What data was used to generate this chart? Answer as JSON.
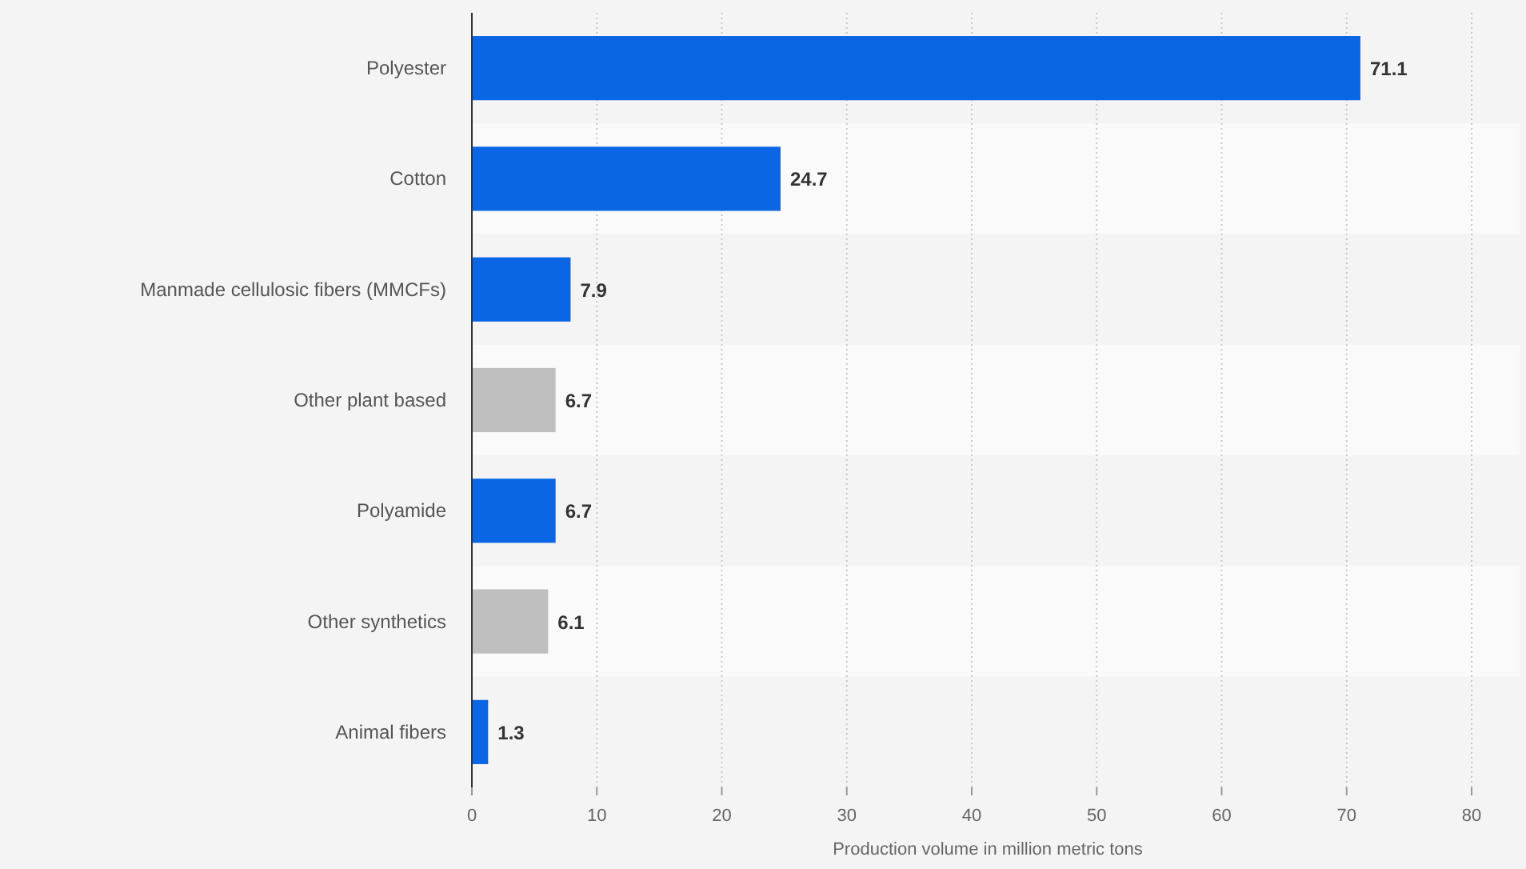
{
  "chart_data": {
    "type": "bar",
    "orientation": "horizontal",
    "xlabel": "Production volume in million metric tons",
    "categories": [
      "Polyester",
      "Cotton",
      "Manmade cellulosic fibers (MMCFs)",
      "Other plant based",
      "Polyamide",
      "Other synthetics",
      "Animal fibers"
    ],
    "values": [
      71.1,
      24.7,
      7.9,
      6.7,
      6.7,
      6.1,
      1.3
    ],
    "colors": [
      "#0a66e4",
      "#0a66e4",
      "#0a66e4",
      "#bfbfbf",
      "#0a66e4",
      "#bfbfbf",
      "#0a66e4"
    ],
    "xlim": [
      0,
      80
    ],
    "xticks": [
      0,
      10,
      20,
      30,
      40,
      50,
      60,
      70,
      80
    ],
    "grid": "x",
    "data_labels": true
  }
}
